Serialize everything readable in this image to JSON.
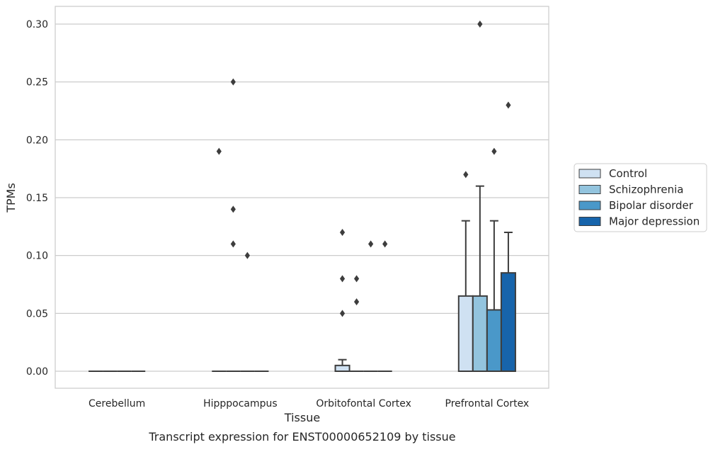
{
  "chart_data": {
    "type": "box",
    "caption": "Transcript expression for ENST00000652109 by tissue",
    "xlabel": "Tissue",
    "ylabel": "TPMs",
    "ylim": [
      -0.015,
      0.315
    ],
    "yticks": [
      0.0,
      0.05,
      0.1,
      0.15,
      0.2,
      0.25,
      0.3
    ],
    "ytick_labels": [
      "0.00",
      "0.05",
      "0.10",
      "0.15",
      "0.20",
      "0.25",
      "0.30"
    ],
    "grid": "horizontal",
    "legend_position": "right",
    "categories": [
      "Cerebellum",
      "Hipppocampus",
      "Orbitofontal Cortex",
      "Prefrontal Cortex"
    ],
    "series": [
      {
        "name": "Control",
        "color": "#cfe1f2",
        "boxes": [
          {
            "q1": 0,
            "median": 0,
            "q3": 0,
            "whisker_low": 0,
            "whisker_high": 0,
            "outliers": []
          },
          {
            "q1": 0,
            "median": 0,
            "q3": 0,
            "whisker_low": 0,
            "whisker_high": 0,
            "outliers": [
              0.19
            ]
          },
          {
            "q1": 0,
            "median": 0,
            "q3": 0.005,
            "whisker_low": 0,
            "whisker_high": 0.01,
            "outliers": [
              0.05,
              0.08,
              0.12
            ]
          },
          {
            "q1": 0,
            "median": 0,
            "q3": 0.065,
            "whisker_low": 0,
            "whisker_high": 0.13,
            "outliers": [
              0.17
            ]
          }
        ]
      },
      {
        "name": "Schizophrenia",
        "color": "#93c4de",
        "boxes": [
          {
            "q1": 0,
            "median": 0,
            "q3": 0,
            "whisker_low": 0,
            "whisker_high": 0,
            "outliers": []
          },
          {
            "q1": 0,
            "median": 0,
            "q3": 0,
            "whisker_low": 0,
            "whisker_high": 0,
            "outliers": [
              0.11,
              0.14,
              0.25
            ]
          },
          {
            "q1": 0,
            "median": 0,
            "q3": 0,
            "whisker_low": 0,
            "whisker_high": 0,
            "outliers": [
              0.06,
              0.08
            ]
          },
          {
            "q1": 0,
            "median": 0,
            "q3": 0.065,
            "whisker_low": 0,
            "whisker_high": 0.16,
            "outliers": [
              0.3
            ]
          }
        ]
      },
      {
        "name": "Bipolar disorder",
        "color": "#4a98c9",
        "boxes": [
          {
            "q1": 0,
            "median": 0,
            "q3": 0,
            "whisker_low": 0,
            "whisker_high": 0,
            "outliers": []
          },
          {
            "q1": 0,
            "median": 0,
            "q3": 0,
            "whisker_low": 0,
            "whisker_high": 0,
            "outliers": [
              0.1
            ]
          },
          {
            "q1": 0,
            "median": 0,
            "q3": 0,
            "whisker_low": 0,
            "whisker_high": 0,
            "outliers": [
              0.11
            ]
          },
          {
            "q1": 0,
            "median": 0,
            "q3": 0.053,
            "whisker_low": 0,
            "whisker_high": 0.13,
            "outliers": [
              0.19
            ]
          }
        ]
      },
      {
        "name": "Major depression",
        "color": "#1764ab",
        "boxes": [
          {
            "q1": 0,
            "median": 0,
            "q3": 0,
            "whisker_low": 0,
            "whisker_high": 0,
            "outliers": []
          },
          {
            "q1": 0,
            "median": 0,
            "q3": 0,
            "whisker_low": 0,
            "whisker_high": 0,
            "outliers": []
          },
          {
            "q1": 0,
            "median": 0,
            "q3": 0,
            "whisker_low": 0,
            "whisker_high": 0,
            "outliers": [
              0.11
            ]
          },
          {
            "q1": 0,
            "median": 0,
            "q3": 0.085,
            "whisker_low": 0,
            "whisker_high": 0.12,
            "outliers": [
              0.23
            ]
          }
        ]
      }
    ]
  }
}
